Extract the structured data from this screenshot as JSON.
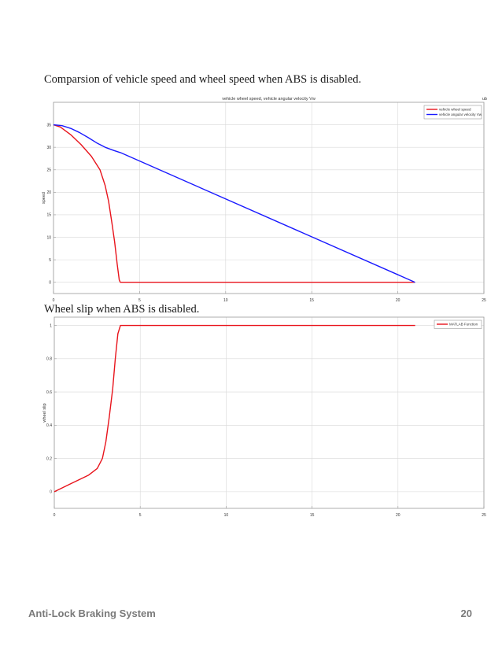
{
  "captions": {
    "first": "Comparsion of vehicle speed and wheel speed when ABS is disabled.",
    "second": "Wheel slip when ABS is disabled."
  },
  "footer": {
    "title": "Anti-Lock Braking System",
    "page_number": "20"
  },
  "colors": {
    "red": "#e8141c",
    "blue": "#1a1aff",
    "grid": "#d8d8d8",
    "axis": "#9a9a9a"
  },
  "chart_data": [
    {
      "type": "line",
      "title": "vehicle wheel speed, vehicle angular velocity Vw",
      "corner_label": "ub",
      "xlabel": "",
      "ylabel": "speed",
      "xlim": [
        0,
        25
      ],
      "ylim": [
        -2.5,
        40
      ],
      "xticks": [
        0,
        5,
        10,
        15,
        20,
        25
      ],
      "yticks": [
        0,
        5,
        10,
        15,
        20,
        25,
        30,
        35
      ],
      "grid": true,
      "legend_position": "top-right",
      "series": [
        {
          "name": "vehicle wheel speed",
          "color": "red",
          "x": [
            0,
            0.4,
            1,
            1.6,
            2.2,
            2.7,
            3.0,
            3.2,
            3.4,
            3.55,
            3.7,
            3.82,
            3.88,
            21
          ],
          "y": [
            35,
            34.5,
            32.8,
            30.6,
            28,
            25,
            21.5,
            18,
            13,
            9,
            4,
            0.5,
            0,
            0
          ]
        },
        {
          "name": "vehicle angular velocity Vw",
          "color": "blue",
          "x": [
            0,
            0.5,
            1.0,
            1.5,
            2.0,
            2.5,
            3.0,
            3.5,
            3.9,
            21
          ],
          "y": [
            35,
            34.8,
            34.2,
            33.3,
            32.2,
            31.0,
            30.0,
            29.3,
            28.8,
            0
          ]
        }
      ]
    },
    {
      "type": "line",
      "title": "",
      "xlabel": "",
      "ylabel": "wheel slip",
      "xlim": [
        0,
        25
      ],
      "ylim": [
        -0.1,
        1.05
      ],
      "xticks": [
        0,
        5,
        10,
        15,
        20,
        25
      ],
      "yticks": [
        0,
        0.2,
        0.4,
        0.6,
        0.8,
        1
      ],
      "ytick_labels": [
        "0",
        "0.2",
        "0.4",
        "0.6",
        "0.8",
        "1"
      ],
      "grid": true,
      "legend_position": "top-right",
      "series": [
        {
          "name": "MATLAB Function",
          "color": "red",
          "x": [
            0,
            1,
            2,
            2.5,
            2.8,
            3.0,
            3.2,
            3.4,
            3.55,
            3.7,
            3.85,
            21
          ],
          "y": [
            0,
            0.05,
            0.1,
            0.14,
            0.2,
            0.3,
            0.45,
            0.62,
            0.8,
            0.95,
            1,
            1
          ]
        }
      ]
    }
  ]
}
